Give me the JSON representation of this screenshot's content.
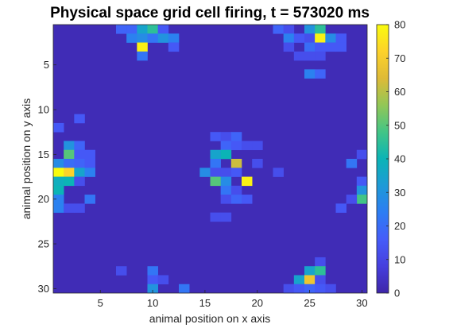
{
  "chart_data": {
    "type": "heatmap",
    "title": "Physical space grid cell firing, t = 573020 ms",
    "xlabel": "animal position on x axis",
    "ylabel": "animal position on y axis",
    "xlim": [
      0.5,
      30.5
    ],
    "ylim": [
      0.5,
      30.5
    ],
    "y_reversed": true,
    "x_ticks": [
      5,
      10,
      15,
      20,
      25,
      30
    ],
    "y_ticks": [
      5,
      10,
      15,
      20,
      25,
      30
    ],
    "colorbar": {
      "colormap": "parula",
      "range": [
        0,
        80
      ],
      "ticks": [
        0,
        10,
        20,
        30,
        40,
        50,
        60,
        70,
        80
      ]
    },
    "background_value": 2,
    "cells": [
      {
        "x": 7,
        "y": 1,
        "v": 18
      },
      {
        "x": 8,
        "y": 1,
        "v": 18
      },
      {
        "x": 9,
        "y": 1,
        "v": 35
      },
      {
        "x": 10,
        "y": 1,
        "v": 45
      },
      {
        "x": 11,
        "y": 1,
        "v": 15
      },
      {
        "x": 8,
        "y": 2,
        "v": 25
      },
      {
        "x": 9,
        "y": 2,
        "v": 28
      },
      {
        "x": 10,
        "y": 2,
        "v": 22
      },
      {
        "x": 11,
        "y": 2,
        "v": 30
      },
      {
        "x": 12,
        "y": 2,
        "v": 25
      },
      {
        "x": 9,
        "y": 3,
        "v": 78
      },
      {
        "x": 12,
        "y": 3,
        "v": 15
      },
      {
        "x": 9,
        "y": 4,
        "v": 22
      },
      {
        "x": 22,
        "y": 1,
        "v": 18
      },
      {
        "x": 23,
        "y": 1,
        "v": 12
      },
      {
        "x": 25,
        "y": 1,
        "v": 30
      },
      {
        "x": 26,
        "y": 1,
        "v": 45
      },
      {
        "x": 23,
        "y": 2,
        "v": 25
      },
      {
        "x": 24,
        "y": 2,
        "v": 15
      },
      {
        "x": 25,
        "y": 2,
        "v": 12
      },
      {
        "x": 26,
        "y": 2,
        "v": 78
      },
      {
        "x": 27,
        "y": 2,
        "v": 28
      },
      {
        "x": 28,
        "y": 2,
        "v": 15
      },
      {
        "x": 23,
        "y": 3,
        "v": 12
      },
      {
        "x": 25,
        "y": 3,
        "v": 20
      },
      {
        "x": 26,
        "y": 3,
        "v": 15
      },
      {
        "x": 27,
        "y": 3,
        "v": 15
      },
      {
        "x": 28,
        "y": 3,
        "v": 15
      },
      {
        "x": 24,
        "y": 4,
        "v": 12
      },
      {
        "x": 25,
        "y": 4,
        "v": 12
      },
      {
        "x": 26,
        "y": 4,
        "v": 12
      },
      {
        "x": 25,
        "y": 6,
        "v": 25
      },
      {
        "x": 26,
        "y": 6,
        "v": 18
      },
      {
        "x": 3,
        "y": 11,
        "v": 15
      },
      {
        "x": 1,
        "y": 12,
        "v": 15
      },
      {
        "x": 16,
        "y": 13,
        "v": 15
      },
      {
        "x": 17,
        "y": 13,
        "v": 12
      },
      {
        "x": 18,
        "y": 13,
        "v": 18
      },
      {
        "x": 2,
        "y": 14,
        "v": 30
      },
      {
        "x": 3,
        "y": 14,
        "v": 18
      },
      {
        "x": 17,
        "y": 14,
        "v": 18
      },
      {
        "x": 18,
        "y": 14,
        "v": 15
      },
      {
        "x": 19,
        "y": 14,
        "v": 12
      },
      {
        "x": 20,
        "y": 14,
        "v": 12
      },
      {
        "x": 2,
        "y": 15,
        "v": 50
      },
      {
        "x": 3,
        "y": 15,
        "v": 15
      },
      {
        "x": 4,
        "y": 15,
        "v": 15
      },
      {
        "x": 16,
        "y": 15,
        "v": 35
      },
      {
        "x": 17,
        "y": 15,
        "v": 40
      },
      {
        "x": 1,
        "y": 16,
        "v": 28
      },
      {
        "x": 2,
        "y": 16,
        "v": 20
      },
      {
        "x": 3,
        "y": 16,
        "v": 18
      },
      {
        "x": 4,
        "y": 16,
        "v": 15
      },
      {
        "x": 16,
        "y": 16,
        "v": 22
      },
      {
        "x": 18,
        "y": 16,
        "v": 62
      },
      {
        "x": 20,
        "y": 16,
        "v": 12
      },
      {
        "x": 1,
        "y": 17,
        "v": 80
      },
      {
        "x": 2,
        "y": 17,
        "v": 72
      },
      {
        "x": 3,
        "y": 17,
        "v": 35
      },
      {
        "x": 4,
        "y": 17,
        "v": 25
      },
      {
        "x": 15,
        "y": 17,
        "v": 28
      },
      {
        "x": 16,
        "y": 17,
        "v": 12
      },
      {
        "x": 17,
        "y": 17,
        "v": 12
      },
      {
        "x": 18,
        "y": 17,
        "v": 15
      },
      {
        "x": 22,
        "y": 17,
        "v": 12
      },
      {
        "x": 1,
        "y": 18,
        "v": 38
      },
      {
        "x": 2,
        "y": 18,
        "v": 40
      },
      {
        "x": 3,
        "y": 18,
        "v": 12
      },
      {
        "x": 16,
        "y": 18,
        "v": 50
      },
      {
        "x": 17,
        "y": 18,
        "v": 28
      },
      {
        "x": 19,
        "y": 18,
        "v": 78
      },
      {
        "x": 1,
        "y": 19,
        "v": 40
      },
      {
        "x": 17,
        "y": 19,
        "v": 22
      },
      {
        "x": 18,
        "y": 19,
        "v": 12
      },
      {
        "x": 1,
        "y": 20,
        "v": 25
      },
      {
        "x": 4,
        "y": 20,
        "v": 22
      },
      {
        "x": 17,
        "y": 20,
        "v": 12
      },
      {
        "x": 18,
        "y": 20,
        "v": 18
      },
      {
        "x": 19,
        "y": 20,
        "v": 15
      },
      {
        "x": 1,
        "y": 21,
        "v": 25
      },
      {
        "x": 2,
        "y": 21,
        "v": 12
      },
      {
        "x": 3,
        "y": 21,
        "v": 12
      },
      {
        "x": 16,
        "y": 22,
        "v": 12
      },
      {
        "x": 17,
        "y": 22,
        "v": 12
      },
      {
        "x": 30,
        "y": 15,
        "v": 12
      },
      {
        "x": 29,
        "y": 16,
        "v": 22
      },
      {
        "x": 30,
        "y": 18,
        "v": 15
      },
      {
        "x": 30,
        "y": 19,
        "v": 30
      },
      {
        "x": 30,
        "y": 20,
        "v": 48
      },
      {
        "x": 29,
        "y": 20,
        "v": 12
      },
      {
        "x": 28,
        "y": 21,
        "v": 15
      },
      {
        "x": 7,
        "y": 28,
        "v": 12
      },
      {
        "x": 10,
        "y": 28,
        "v": 22
      },
      {
        "x": 10,
        "y": 29,
        "v": 15
      },
      {
        "x": 11,
        "y": 29,
        "v": 12
      },
      {
        "x": 10,
        "y": 30,
        "v": 30
      },
      {
        "x": 13,
        "y": 30,
        "v": 22
      },
      {
        "x": 26,
        "y": 27,
        "v": 12
      },
      {
        "x": 25,
        "y": 28,
        "v": 35
      },
      {
        "x": 26,
        "y": 28,
        "v": 45
      },
      {
        "x": 24,
        "y": 29,
        "v": 35
      },
      {
        "x": 25,
        "y": 29,
        "v": 68
      },
      {
        "x": 26,
        "y": 29,
        "v": 12
      },
      {
        "x": 23,
        "y": 30,
        "v": 12
      },
      {
        "x": 24,
        "y": 30,
        "v": 15
      },
      {
        "x": 25,
        "y": 30,
        "v": 18
      },
      {
        "x": 26,
        "y": 30,
        "v": 15
      },
      {
        "x": 27,
        "y": 30,
        "v": 12
      }
    ]
  }
}
